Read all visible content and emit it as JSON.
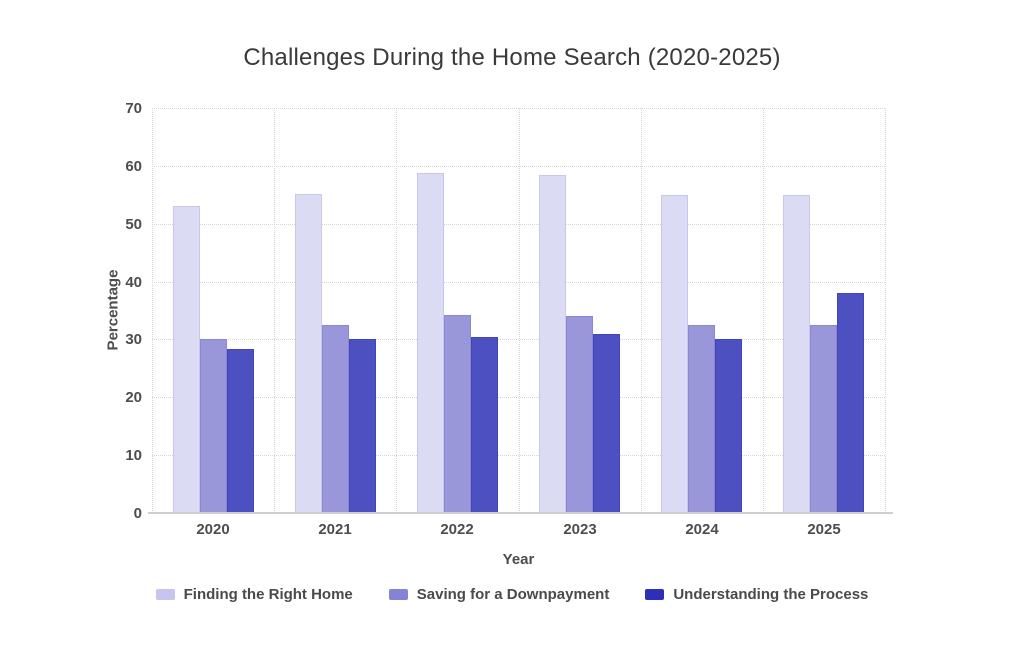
{
  "chart_data": {
    "type": "bar",
    "title": "Challenges During the Home Search (2020-2025)",
    "xlabel": "Year",
    "ylabel": "Percentage",
    "ylim": [
      0,
      70
    ],
    "ytick_step": 10,
    "grid": "dotted",
    "legend_position": "bottom",
    "categories": [
      "2020",
      "2021",
      "2022",
      "2023",
      "2024",
      "2025"
    ],
    "series": [
      {
        "name": "Finding the Right Home",
        "fill": "#dcdbf4",
        "border": "#c9c7ee",
        "swatch": "#c7c4f0",
        "values": [
          53,
          55.2,
          58.8,
          58.4,
          55,
          55
        ]
      },
      {
        "name": "Saving for a Downpayment",
        "fill": "#9997d9",
        "border": "#8a88d2",
        "swatch": "#8583d6",
        "values": [
          30,
          32.5,
          34.3,
          34,
          32.5,
          32.5
        ]
      },
      {
        "name": "Understanding the Process",
        "fill": "#4d50c1",
        "border": "#4145ba",
        "swatch": "#2e2fb8",
        "values": [
          28.3,
          30,
          30.4,
          31,
          30,
          38
        ]
      }
    ]
  }
}
